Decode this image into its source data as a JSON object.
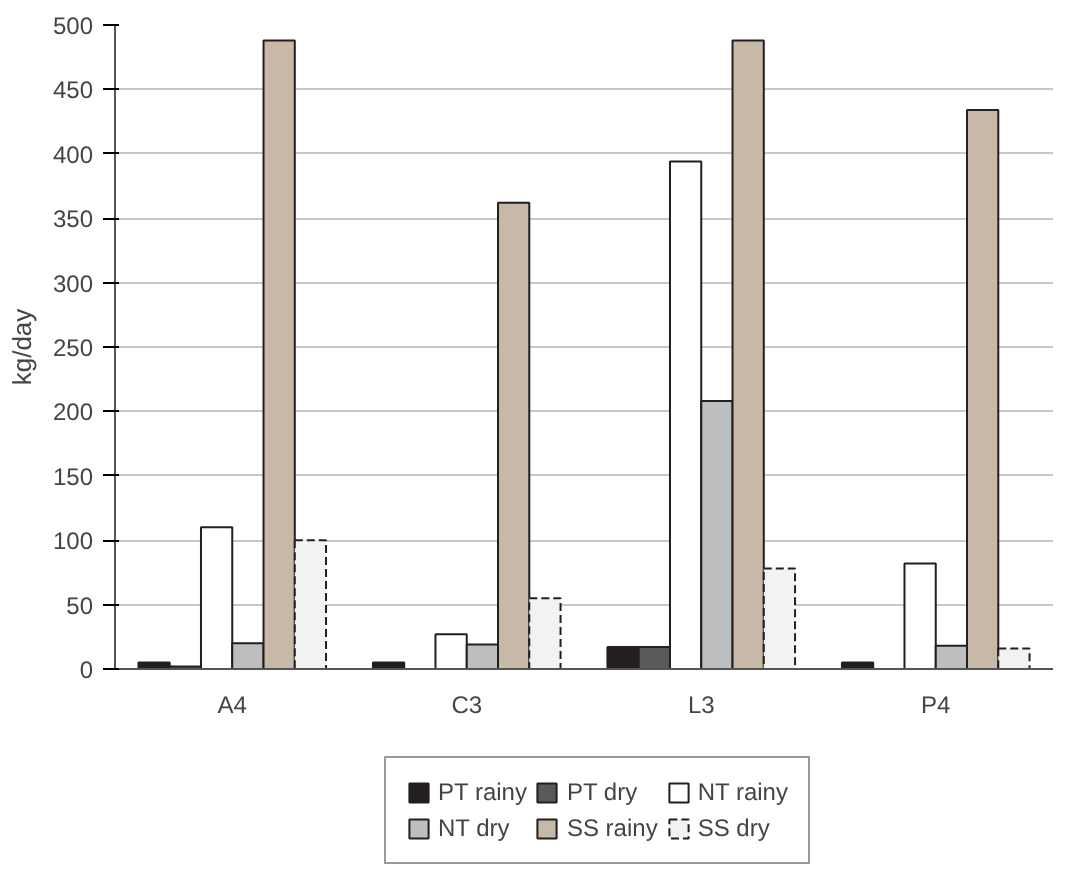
{
  "chart_data": {
    "type": "bar",
    "ylabel": "kg/day",
    "categories": [
      "A4",
      "C3",
      "L3",
      "P4"
    ],
    "series": [
      {
        "name": "PT rainy",
        "color": "#231f20",
        "values": [
          5,
          5,
          17,
          5
        ]
      },
      {
        "name": "PT dry",
        "color": "#58595b",
        "values": [
          2,
          0,
          17,
          0
        ]
      },
      {
        "name": "NT rainy",
        "color": "#ffffff",
        "values": [
          110,
          27,
          394,
          82
        ]
      },
      {
        "name": "NT dry",
        "color": "#bcbec0",
        "values": [
          20,
          19,
          208,
          18
        ]
      },
      {
        "name": "SS rainy",
        "color": "#c8b8a8",
        "values": [
          488,
          362,
          488,
          434
        ]
      },
      {
        "name": "SS dry",
        "color": "#f1f2f2",
        "values": [
          100,
          55,
          78,
          16
        ],
        "line_style": "dashed"
      }
    ],
    "ylim": [
      0,
      500
    ],
    "yticks": [
      0,
      50,
      100,
      150,
      200,
      250,
      300,
      350,
      400,
      450,
      500
    ],
    "grid": "y",
    "legend": "bottom"
  }
}
